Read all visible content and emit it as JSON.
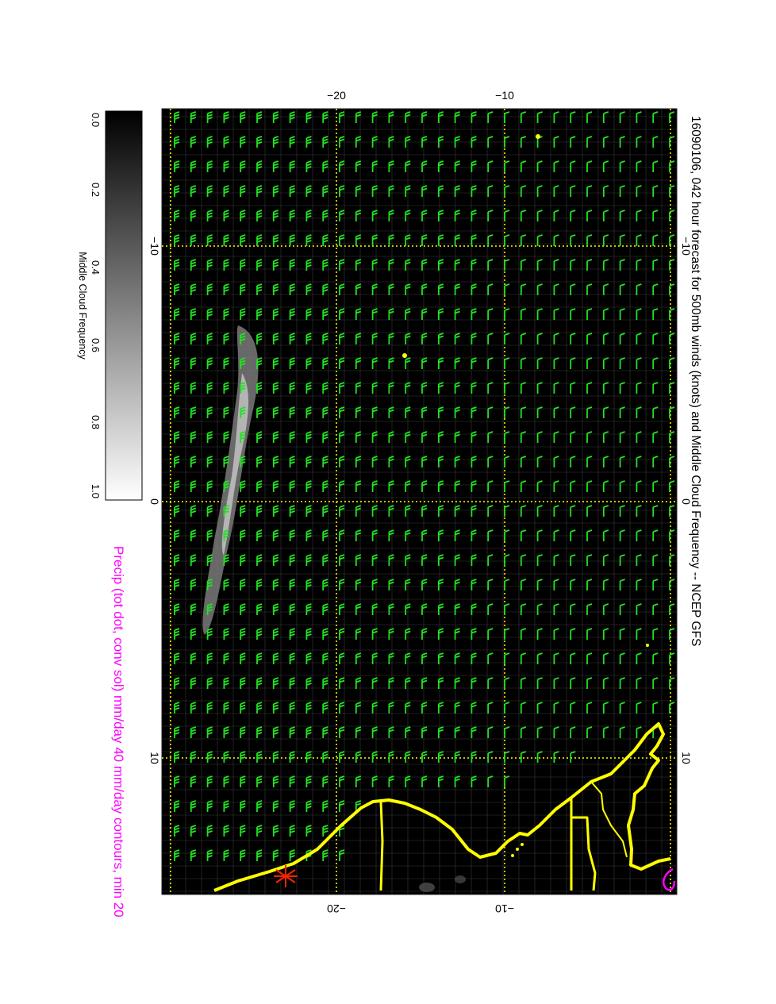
{
  "title": "16090106, 042 hour forecast for 500mb winds (knots) and Middle Cloud Frequency -- NCEP GFS",
  "subtitle": "Precip (tot dot, conv sol) mm/day 40 mm/day contours, min 20",
  "colorbar": {
    "label": "Middle Cloud Frequency",
    "ticks": [
      "0.0",
      "0.2",
      "0.4",
      "0.6",
      "0.8",
      "1.0"
    ]
  },
  "axes": {
    "top_ticks": [
      "−20",
      "−10"
    ],
    "bottom_ticks": [
      "−20",
      "−10"
    ],
    "left_ticks": [
      "−10",
      "0",
      "10"
    ],
    "right_ticks": [
      "−10",
      "0",
      "10"
    ]
  },
  "colors": {
    "background": "#000000",
    "wind_barbs": "#22e222",
    "coastline": "#ffff00",
    "grid": "#ffff00",
    "precip_contour": "#ff00ff",
    "title_text": "#000000",
    "subtitle_text": "#ff00ff"
  },
  "map_features": {
    "wind_field": "wind-barbs",
    "cloud_band": "middle-cloud-band",
    "coastline": "coastline",
    "storm_marker": "asterisk-marker"
  }
}
